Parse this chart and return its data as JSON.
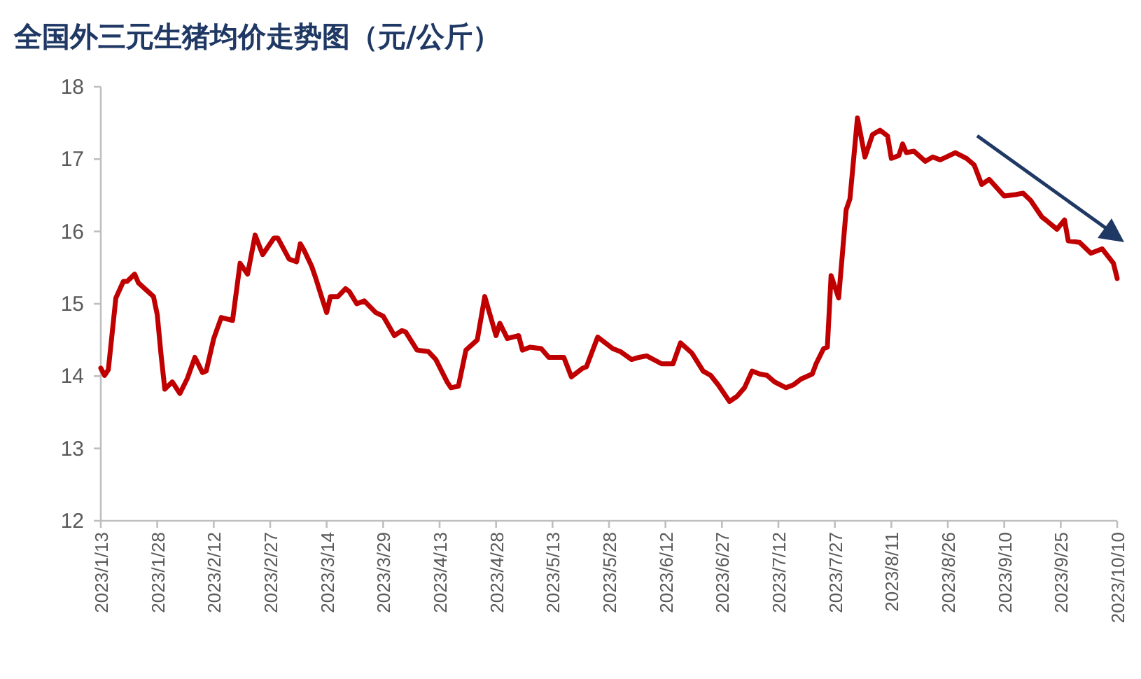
{
  "chart_data": {
    "type": "line",
    "title": "全国外三元生猪均价走势图（元/公斤）",
    "x": [
      "2023-01-13",
      "2023-01-14",
      "2023-01-15",
      "2023-01-17",
      "2023-01-19",
      "2023-01-20",
      "2023-01-22",
      "2023-01-23",
      "2023-01-27",
      "2023-01-28",
      "2023-01-29",
      "2023-01-30",
      "2023-02-01",
      "2023-02-03",
      "2023-02-05",
      "2023-02-07",
      "2023-02-09",
      "2023-02-10",
      "2023-02-12",
      "2023-02-14",
      "2023-02-17",
      "2023-02-19",
      "2023-02-21",
      "2023-02-23",
      "2023-02-25",
      "2023-02-28",
      "2023-03-01",
      "2023-03-04",
      "2023-03-06",
      "2023-03-07",
      "2023-03-08",
      "2023-03-10",
      "2023-03-11",
      "2023-03-13",
      "2023-03-14",
      "2023-03-15",
      "2023-03-17",
      "2023-03-19",
      "2023-03-20",
      "2023-03-22",
      "2023-03-24",
      "2023-03-27",
      "2023-03-29",
      "2023-04-01",
      "2023-04-03",
      "2023-04-04",
      "2023-04-07",
      "2023-04-10",
      "2023-04-12",
      "2023-04-15",
      "2023-04-16",
      "2023-04-18",
      "2023-04-20",
      "2023-04-23",
      "2023-04-25",
      "2023-04-28",
      "2023-04-29",
      "2023-05-01",
      "2023-05-04",
      "2023-05-05",
      "2023-05-07",
      "2023-05-10",
      "2023-05-12",
      "2023-05-16",
      "2023-05-18",
      "2023-05-21",
      "2023-05-22",
      "2023-05-25",
      "2023-05-29",
      "2023-05-31",
      "2023-06-03",
      "2023-06-05",
      "2023-06-07",
      "2023-06-11",
      "2023-06-14",
      "2023-06-16",
      "2023-06-19",
      "2023-06-22",
      "2023-06-24",
      "2023-06-26",
      "2023-06-29",
      "2023-07-01",
      "2023-07-03",
      "2023-07-05",
      "2023-07-07",
      "2023-07-09",
      "2023-07-11",
      "2023-07-14",
      "2023-07-16",
      "2023-07-18",
      "2023-07-21",
      "2023-07-22",
      "2023-07-24",
      "2023-07-25",
      "2023-07-26",
      "2023-07-28",
      "2023-07-30",
      "2023-07-31",
      "2023-08-02",
      "2023-08-04",
      "2023-08-06",
      "2023-08-08",
      "2023-08-10",
      "2023-08-11",
      "2023-08-13",
      "2023-08-14",
      "2023-08-15",
      "2023-08-17",
      "2023-08-20",
      "2023-08-22",
      "2023-08-24",
      "2023-08-28",
      "2023-08-31",
      "2023-09-02",
      "2023-09-04",
      "2023-09-06",
      "2023-09-10",
      "2023-09-13",
      "2023-09-15",
      "2023-09-17",
      "2023-09-20",
      "2023-09-21",
      "2023-09-24",
      "2023-09-26",
      "2023-09-27",
      "2023-09-30",
      "2023-10-03",
      "2023-10-06",
      "2023-10-09",
      "2023-10-10"
    ],
    "series": [
      {
        "color": "#c00000",
        "values": [
          14.11,
          14.01,
          14.09,
          15.08,
          15.31,
          15.31,
          15.41,
          15.29,
          15.1,
          14.85,
          14.3,
          13.82,
          13.92,
          13.76,
          13.97,
          14.26,
          14.05,
          14.07,
          14.52,
          14.81,
          14.77,
          15.56,
          15.41,
          15.95,
          15.68,
          15.91,
          15.91,
          15.62,
          15.58,
          15.83,
          15.74,
          15.52,
          15.37,
          15.04,
          14.88,
          15.1,
          15.1,
          15.21,
          15.17,
          15.0,
          15.04,
          14.88,
          14.83,
          14.56,
          14.63,
          14.61,
          14.36,
          14.34,
          14.23,
          13.92,
          13.84,
          13.86,
          14.36,
          14.5,
          15.1,
          14.56,
          14.73,
          14.52,
          14.56,
          14.36,
          14.4,
          14.38,
          14.26,
          14.26,
          13.99,
          14.11,
          14.13,
          14.54,
          14.38,
          14.34,
          14.23,
          14.26,
          14.28,
          14.17,
          14.17,
          14.46,
          14.32,
          14.07,
          14.01,
          13.88,
          13.65,
          13.72,
          13.84,
          14.07,
          14.03,
          14.01,
          13.92,
          13.84,
          13.88,
          13.96,
          14.03,
          14.17,
          14.38,
          14.4,
          15.39,
          15.08,
          16.3,
          16.45,
          17.57,
          17.03,
          17.34,
          17.4,
          17.32,
          17.01,
          17.05,
          17.21,
          17.09,
          17.11,
          16.97,
          17.03,
          16.99,
          17.09,
          17.01,
          16.92,
          16.65,
          16.72,
          16.49,
          16.51,
          16.53,
          16.43,
          16.2,
          16.16,
          16.03,
          16.16,
          15.87,
          15.85,
          15.7,
          15.76,
          15.56,
          15.35
        ]
      }
    ],
    "xlim": [
      "2023-01-13",
      "2023-10-10"
    ],
    "xticks": [
      {
        "value": "2023-01-13",
        "label": "2023/1/13"
      },
      {
        "value": "2023-01-28",
        "label": "2023/1/28"
      },
      {
        "value": "2023-02-12",
        "label": "2023/2/12"
      },
      {
        "value": "2023-02-27",
        "label": "2023/2/27"
      },
      {
        "value": "2023-03-14",
        "label": "2023/3/14"
      },
      {
        "value": "2023-03-29",
        "label": "2023/3/29"
      },
      {
        "value": "2023-04-13",
        "label": "2023/4/13"
      },
      {
        "value": "2023-04-28",
        "label": "2023/4/28"
      },
      {
        "value": "2023-05-13",
        "label": "2023/5/13"
      },
      {
        "value": "2023-05-28",
        "label": "2023/5/28"
      },
      {
        "value": "2023-06-12",
        "label": "2023/6/12"
      },
      {
        "value": "2023-06-27",
        "label": "2023/6/27"
      },
      {
        "value": "2023-07-12",
        "label": "2023/7/12"
      },
      {
        "value": "2023-07-27",
        "label": "2023/7/27"
      },
      {
        "value": "2023-08-11",
        "label": "2023/8/11"
      },
      {
        "value": "2023-08-26",
        "label": "2023/8/26"
      },
      {
        "value": "2023-09-10",
        "label": "2023/9/10"
      },
      {
        "value": "2023-09-25",
        "label": "2023/9/25"
      },
      {
        "value": "2023-10-10",
        "label": "2023/10/10"
      }
    ],
    "ylim": [
      12,
      18
    ],
    "yticks": [
      12,
      13,
      14,
      15,
      16,
      17,
      18
    ],
    "grid": false,
    "line_style": "solid"
  }
}
